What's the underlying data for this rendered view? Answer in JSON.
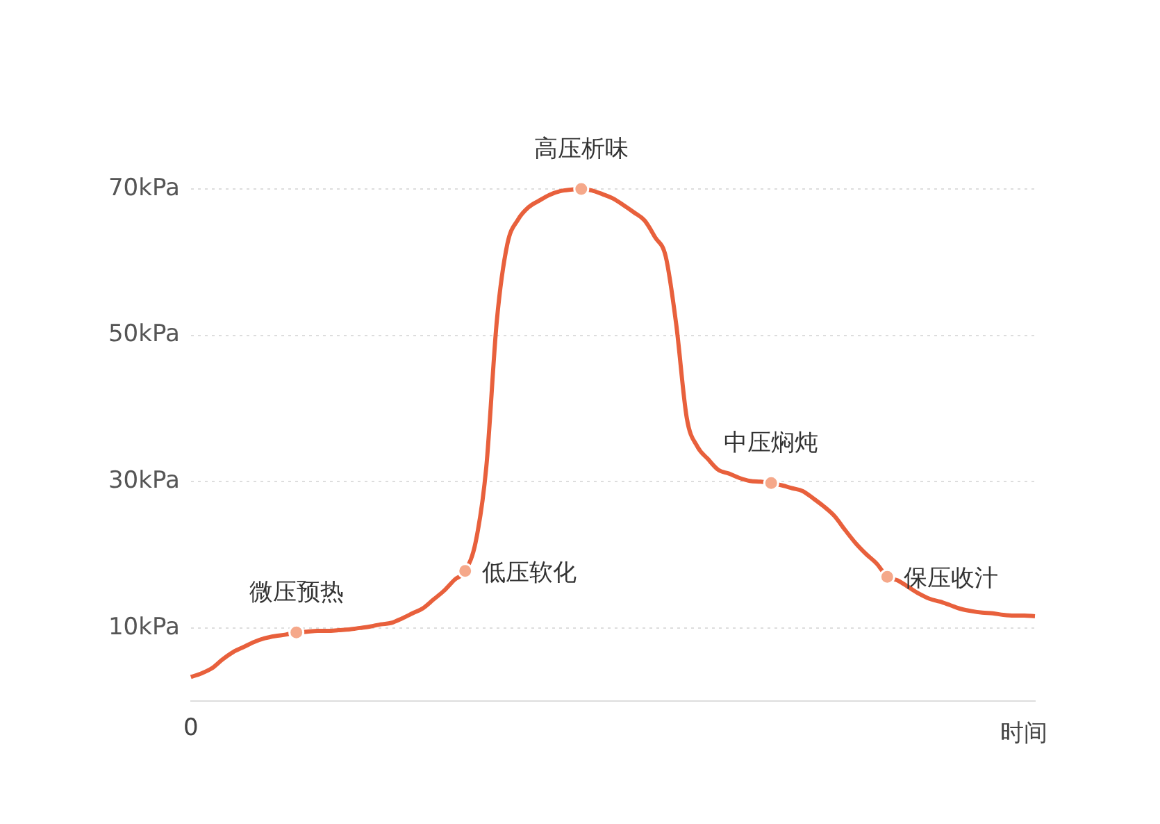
{
  "chart_data": {
    "type": "line",
    "xlabel": "时间",
    "categories": [
      "0",
      null,
      null,
      null,
      null,
      null,
      null,
      null,
      null,
      null,
      null,
      null,
      null,
      null,
      null,
      null,
      null,
      null,
      null,
      null,
      null,
      null,
      null,
      null,
      null,
      null,
      null,
      null,
      null,
      null,
      null,
      null,
      null,
      null,
      null,
      null,
      null,
      null,
      null,
      null,
      null,
      null,
      null,
      null,
      null,
      null,
      null,
      null,
      null,
      null,
      null,
      null,
      null,
      null,
      null,
      null,
      null,
      null,
      null,
      null,
      null,
      null,
      null,
      null,
      null,
      null,
      null,
      null,
      null,
      null,
      null,
      null,
      null,
      null,
      null,
      null,
      null,
      null,
      null,
      null,
      null
    ],
    "ylim": [
      0,
      70
    ],
    "yticks": [
      {
        "value": 10,
        "label": "10kPa"
      },
      {
        "value": 30,
        "label": "30kPa"
      },
      {
        "value": 50,
        "label": "50kPa"
      },
      {
        "value": 70,
        "label": "70kPa"
      }
    ],
    "grid": "y",
    "legend": false,
    "line_style": "solid",
    "series": [
      {
        "color": "#e8603c",
        "values": [
          3.3,
          3.8,
          4.5,
          5.7,
          6.7,
          7.4,
          8.1,
          8.6,
          8.9,
          9.1,
          9.4,
          9.5,
          9.6,
          9.6,
          9.7,
          9.8,
          10.0,
          10.2,
          10.5,
          10.7,
          11.3,
          12.0,
          12.7,
          13.9,
          15.1,
          16.6,
          17.8,
          21.8,
          32,
          52,
          62.5,
          65.8,
          67.5,
          68.4,
          69.2,
          69.7,
          69.9,
          70,
          69.8,
          69.3,
          68.7,
          67.8,
          66.8,
          65.7,
          63.4,
          60.8,
          51.5,
          38.7,
          34.8,
          33.1,
          31.6,
          31.1,
          30.5,
          30.1,
          30,
          29.8,
          29.5,
          29.1,
          28.7,
          27.7,
          26.6,
          25.3,
          23.4,
          21.6,
          20.1,
          18.8,
          17,
          16.5,
          15.6,
          14.7,
          14.0,
          13.6,
          13.1,
          12.6,
          12.3,
          12.1,
          12.0,
          11.8,
          11.7,
          11.7,
          11.6
        ],
        "value_labels": [
          null,
          null,
          null,
          null,
          null,
          null,
          null,
          null,
          null,
          null,
          "微压预热",
          null,
          null,
          null,
          null,
          null,
          null,
          null,
          null,
          null,
          null,
          null,
          null,
          null,
          null,
          null,
          "低压软化",
          null,
          null,
          null,
          null,
          null,
          null,
          null,
          null,
          null,
          null,
          "高压析味",
          null,
          null,
          null,
          null,
          null,
          null,
          null,
          null,
          null,
          null,
          null,
          null,
          null,
          null,
          null,
          null,
          null,
          "中压焖炖",
          null,
          null,
          null,
          null,
          null,
          null,
          null,
          null,
          null,
          null,
          "保压收汁",
          null,
          null,
          null,
          null,
          null,
          null,
          null,
          null,
          null,
          null,
          null,
          null,
          null,
          null
        ]
      }
    ]
  }
}
